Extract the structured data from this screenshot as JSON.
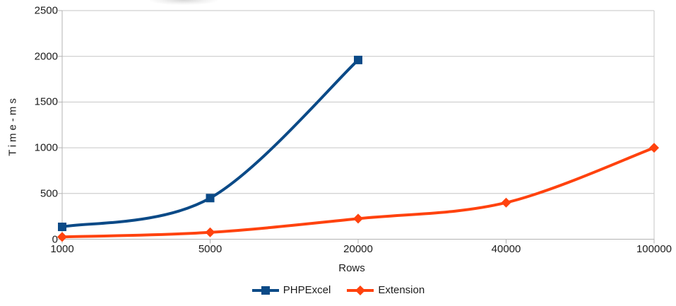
{
  "chart_data": {
    "type": "line",
    "title": "",
    "xlabel": "Rows",
    "ylabel": "Time-ms",
    "categories": [
      "1000",
      "5000",
      "20000",
      "40000",
      "100000"
    ],
    "x_values": [
      1000,
      5000,
      20000,
      40000,
      100000
    ],
    "y_ticks": [
      0,
      500,
      1000,
      1500,
      2000,
      2500
    ],
    "ylim": [
      0,
      2500
    ],
    "grid": "horizontal",
    "legend_position": "bottom-center",
    "line_style": "smooth",
    "colors": {
      "grid": "#c6c6c6",
      "axis": "#b3b3b3",
      "text": "#1c1c1c",
      "background": "#ffffff"
    },
    "series": [
      {
        "name": "PHPExcel",
        "color": "#0b4a87",
        "marker": "square",
        "values": [
          135,
          450,
          1960,
          null,
          null
        ]
      },
      {
        "name": "Extension",
        "color": "#ff420e",
        "marker": "diamond",
        "values": [
          25,
          75,
          225,
          400,
          1000
        ]
      }
    ]
  }
}
